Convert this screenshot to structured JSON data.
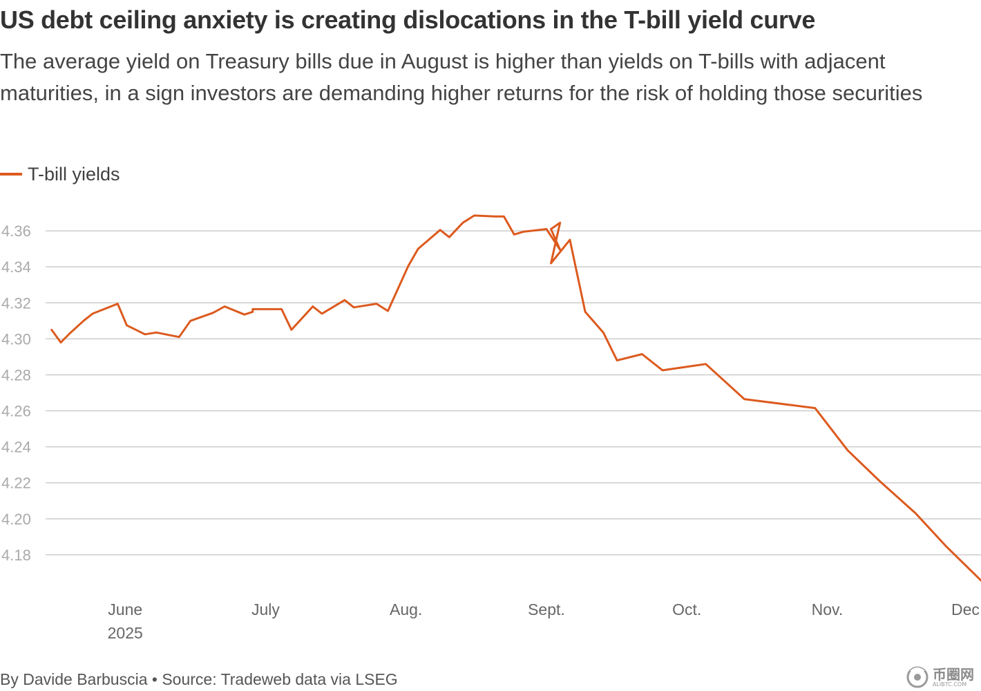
{
  "header": {
    "title": "US debt ceiling anxiety is creating dislocations in the T-bill yield curve",
    "subtitle": "The average yield on Treasury bills due in August is higher than yields on T-bills with adjacent maturities, in a sign investors are demanding higher returns for the risk of holding those securities"
  },
  "legend": {
    "label": "T-bill yields",
    "color": "#dc5a1e"
  },
  "source_line": "By Davide Barbuscia • Source: Tradeweb data via LSEG",
  "watermark": {
    "text": "币圈网",
    "sub": "ALIBTC.COM"
  },
  "chart_data": {
    "type": "line",
    "title": "US debt ceiling anxiety is creating dislocations in the T-bill yield curve",
    "xlabel": "",
    "ylabel": "",
    "ylim": [
      4.16,
      4.375
    ],
    "xlim": [
      0,
      7.1
    ],
    "grid": true,
    "legend_position": "top-left",
    "yticks": [
      4.18,
      4.2,
      4.22,
      4.24,
      4.26,
      4.28,
      4.3,
      4.32,
      4.34,
      4.36
    ],
    "ytick_labels": [
      "4.18",
      "4.20",
      "4.22",
      "4.24",
      "4.26",
      "4.28",
      "4.30",
      "4.32",
      "4.34",
      "4.36"
    ],
    "xticks": [
      {
        "pos": 1,
        "label": "June",
        "sublabel": "2025"
      },
      {
        "pos": 2,
        "label": "July"
      },
      {
        "pos": 3,
        "label": "Aug."
      },
      {
        "pos": 4,
        "label": "Sept."
      },
      {
        "pos": 5,
        "label": "Oct."
      },
      {
        "pos": 6,
        "label": "Nov."
      },
      {
        "pos": 7,
        "label": "Dec."
      }
    ],
    "series": [
      {
        "name": "T-bill yields",
        "color": "#dc5a1e",
        "x": [
          0.476,
          0.541,
          0.605,
          0.703,
          0.768,
          0.946,
          1.011,
          1.141,
          1.222,
          1.384,
          1.465,
          1.627,
          1.708,
          1.849,
          1.908,
          1.908,
          1.949,
          2.114,
          2.184,
          2.336,
          2.401,
          2.563,
          2.628,
          2.79,
          2.871,
          3.016,
          3.086,
          3.243,
          3.308,
          3.405,
          3.486,
          3.632,
          3.697,
          3.697,
          3.77,
          3.835,
          4.0,
          4.097,
          4.032,
          4.097,
          4.032,
          4.167,
          4.276,
          4.405,
          4.503,
          4.681,
          4.827,
          5.135,
          5.41,
          5.913,
          6.146,
          6.373,
          6.63,
          6.843,
          7.105
        ],
        "values": [
          4.305,
          4.298,
          4.303,
          4.31,
          4.314,
          4.3195,
          4.3075,
          4.3025,
          4.3035,
          4.301,
          4.31,
          4.3145,
          4.318,
          4.3135,
          4.315,
          4.3165,
          4.3165,
          4.3165,
          4.305,
          4.318,
          4.314,
          4.3215,
          4.3175,
          4.3195,
          4.3155,
          4.3405,
          4.35,
          4.3605,
          4.3565,
          4.3645,
          4.3685,
          4.368,
          4.368,
          4.368,
          4.358,
          4.3595,
          4.361,
          4.3495,
          4.361,
          4.3645,
          4.342,
          4.355,
          4.315,
          4.3035,
          4.288,
          4.2915,
          4.2825,
          4.286,
          4.2665,
          4.2615,
          4.238,
          4.221,
          4.203,
          4.185,
          4.165
        ]
      }
    ]
  }
}
